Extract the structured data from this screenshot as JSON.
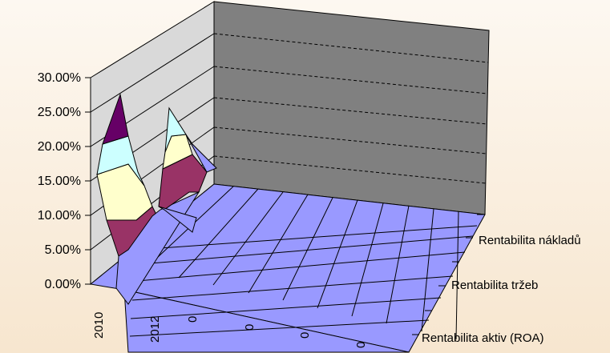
{
  "chart_data": {
    "type": "area",
    "subtype": "3d-surface",
    "title": "",
    "y_ticks": [
      "0.00%",
      "5.00%",
      "10.00%",
      "15.00%",
      "20.00%",
      "25.00%",
      "30.00%"
    ],
    "ylim": [
      0,
      30
    ],
    "x_ticks": [
      "2010",
      "2012",
      "0",
      "0",
      "0",
      "0"
    ],
    "series_labels": [
      "Rentabilita aktiv (ROA)",
      "Rentabilita  tržeb",
      "Rentabilita nákladů"
    ],
    "grid": "dashed horizontal on back wall",
    "colors": {
      "band_0_5": "#9999ff",
      "band_5_10": "#993366",
      "band_10_15": "#ffffcc",
      "band_15_20": "#ccffff",
      "band_20_30": "#660066",
      "floor": "#9999ff",
      "back_wall": "#808080",
      "side_wall": "#d9d9d9"
    }
  }
}
